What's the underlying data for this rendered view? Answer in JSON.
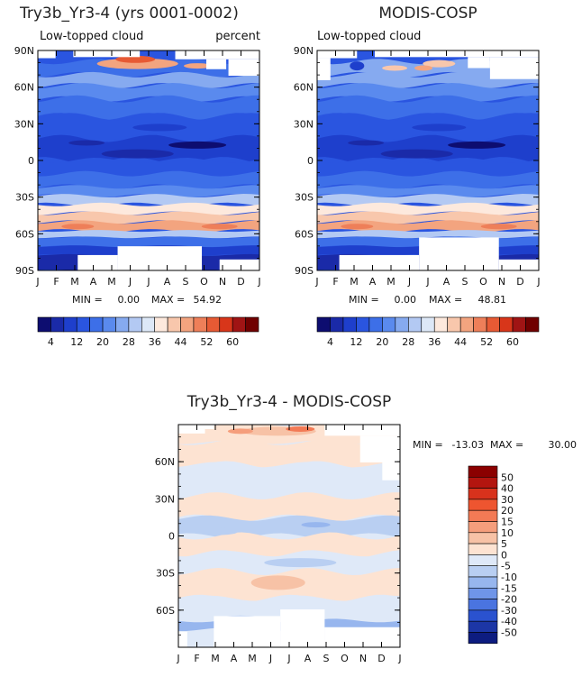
{
  "chart_data": [
    {
      "type": "heatmap",
      "title": "Try3b_Yr3-4 (yrs 0001-0002)",
      "subtitle_left": "Low-topped cloud",
      "subtitle_right": "percent",
      "x_tick_labels": [
        "J",
        "F",
        "M",
        "A",
        "M",
        "J",
        "J",
        "A",
        "S",
        "O",
        "N",
        "D",
        "J"
      ],
      "y_tick_labels": [
        "90N",
        "60N",
        "30N",
        "0",
        "30S",
        "60S",
        "90S"
      ],
      "y_values": [
        90,
        60,
        30,
        0,
        -30,
        -60,
        -90
      ],
      "ylim": [
        -90,
        90
      ],
      "min_label": "MIN =",
      "min_value": "0.00",
      "max_label": "MAX =",
      "max_value": "54.92"
    },
    {
      "type": "heatmap",
      "title": "MODIS-COSP",
      "subtitle_left": "Low-topped cloud",
      "x_tick_labels": [
        "J",
        "F",
        "M",
        "A",
        "M",
        "J",
        "J",
        "A",
        "S",
        "O",
        "N",
        "D",
        "J"
      ],
      "y_tick_labels": [
        "90N",
        "60N",
        "30N",
        "0",
        "30S",
        "60S",
        "90S"
      ],
      "y_values": [
        90,
        60,
        30,
        0,
        -30,
        -60,
        -90
      ],
      "ylim": [
        -90,
        90
      ],
      "min_label": "MIN =",
      "min_value": "0.00",
      "max_label": "MAX =",
      "max_value": "48.81"
    },
    {
      "type": "heatmap",
      "title": "Try3b_Yr3-4 - MODIS-COSP",
      "x_tick_labels": [
        "J",
        "F",
        "M",
        "A",
        "M",
        "J",
        "J",
        "A",
        "S",
        "O",
        "N",
        "D",
        "J"
      ],
      "y_tick_labels": [
        "60N",
        "30N",
        "0",
        "30S",
        "60S"
      ],
      "y_values": [
        60,
        30,
        0,
        -30,
        -60
      ],
      "ylim": [
        -90,
        90
      ],
      "min_label": "MIN =",
      "min_value": "-13.03",
      "max_label": "MAX =",
      "max_value": "30.00"
    }
  ],
  "colorbar_abs": {
    "labels": [
      "4",
      "12",
      "20",
      "28",
      "36",
      "44",
      "52",
      "60"
    ],
    "colors": [
      "#0d0d70",
      "#1a2aa8",
      "#1e3fcc",
      "#2a55e0",
      "#3d6fe8",
      "#5a8aee",
      "#86aaf0",
      "#b3c9f3",
      "#dde8f7",
      "#fde9dd",
      "#f8c7ac",
      "#f3a47f",
      "#ee7f59",
      "#e75a34",
      "#d8361a",
      "#a01414",
      "#700000"
    ]
  },
  "colorbar_diff": {
    "labels": [
      "50",
      "40",
      "30",
      "20",
      "15",
      "10",
      "5",
      "0",
      "-5",
      "-10",
      "-15",
      "-20",
      "-30",
      "-40",
      "-50"
    ],
    "colors": [
      "#8b0000",
      "#b3150f",
      "#d8321c",
      "#ee5530",
      "#f37a55",
      "#f59e7c",
      "#f7c2a6",
      "#fde3d2",
      "#dfe9f8",
      "#b9cff2",
      "#97b6ee",
      "#6f95e8",
      "#4a74e0",
      "#2a52cf",
      "#1c36a6",
      "#0d1c80"
    ]
  },
  "palettes": {
    "blues": [
      "#0d0d70",
      "#1a2aa8",
      "#1e3fcc",
      "#2a55e0",
      "#3d6fe8",
      "#5a8aee",
      "#86aaf0",
      "#b3c9f3",
      "#dde8f7"
    ],
    "warm": [
      "#fde9dd",
      "#f8c7ac",
      "#f3a47f",
      "#ee7f59",
      "#e75a34",
      "#d8361a"
    ]
  }
}
